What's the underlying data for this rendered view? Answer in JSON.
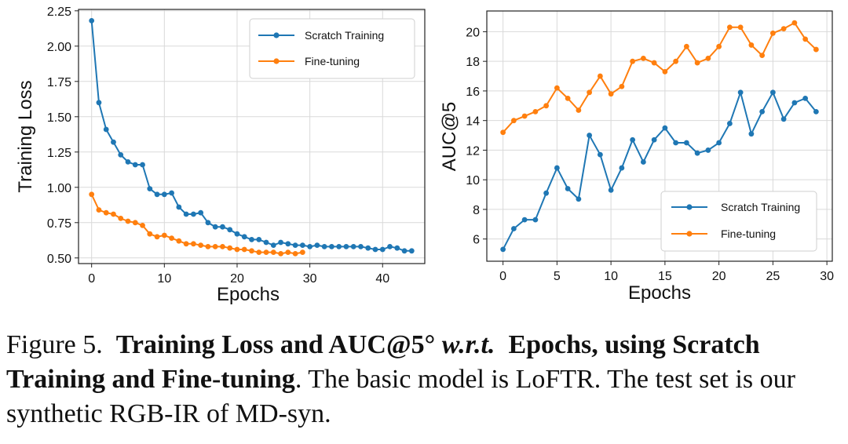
{
  "colors": {
    "scratch": "#1f77b4",
    "finetune": "#ff7f0e",
    "grid": "#d9d9d9",
    "axis": "#222222"
  },
  "chart_data": [
    {
      "type": "line",
      "xlabel": "Epochs",
      "ylabel": "Training Loss",
      "xlim": [
        -1.8,
        45.8
      ],
      "ylim": [
        0.46,
        2.26
      ],
      "xticks": [
        0,
        10,
        20,
        30,
        40
      ],
      "yticks": [
        0.5,
        0.75,
        1.0,
        1.25,
        1.5,
        1.75,
        2.0,
        2.25
      ],
      "ytick_labels": [
        "0.50",
        "0.75",
        "1.00",
        "1.25",
        "1.50",
        "1.75",
        "2.00",
        "2.25"
      ],
      "grid": true,
      "legend_position": "top-right",
      "series": [
        {
          "name": "Scratch Training",
          "color_key": "scratch",
          "x": [
            0,
            1,
            2,
            3,
            4,
            5,
            6,
            7,
            8,
            9,
            10,
            11,
            12,
            13,
            14,
            15,
            16,
            17,
            18,
            19,
            20,
            21,
            22,
            23,
            24,
            25,
            26,
            27,
            28,
            29,
            30,
            31,
            32,
            33,
            34,
            35,
            36,
            37,
            38,
            39,
            40,
            41,
            42,
            43,
            44
          ],
          "values": [
            2.18,
            1.6,
            1.41,
            1.32,
            1.23,
            1.18,
            1.16,
            1.16,
            0.99,
            0.95,
            0.95,
            0.96,
            0.86,
            0.81,
            0.81,
            0.82,
            0.75,
            0.72,
            0.72,
            0.7,
            0.67,
            0.65,
            0.63,
            0.63,
            0.61,
            0.59,
            0.61,
            0.6,
            0.59,
            0.59,
            0.58,
            0.59,
            0.58,
            0.58,
            0.58,
            0.58,
            0.58,
            0.58,
            0.57,
            0.56,
            0.56,
            0.58,
            0.57,
            0.55,
            0.55
          ]
        },
        {
          "name": "Fine-tuning",
          "color_key": "finetune",
          "x": [
            0,
            1,
            2,
            3,
            4,
            5,
            6,
            7,
            8,
            9,
            10,
            11,
            12,
            13,
            14,
            15,
            16,
            17,
            18,
            19,
            20,
            21,
            22,
            23,
            24,
            25,
            26,
            27,
            28,
            29
          ],
          "values": [
            0.95,
            0.84,
            0.82,
            0.81,
            0.78,
            0.76,
            0.75,
            0.73,
            0.67,
            0.65,
            0.66,
            0.64,
            0.62,
            0.6,
            0.6,
            0.59,
            0.58,
            0.58,
            0.58,
            0.57,
            0.56,
            0.56,
            0.55,
            0.54,
            0.54,
            0.54,
            0.53,
            0.54,
            0.53,
            0.54
          ]
        }
      ]
    },
    {
      "type": "line",
      "xlabel": "Epochs",
      "ylabel": "AUC@5",
      "xlim": [
        -1.5,
        30.5
      ],
      "ylim": [
        4.5,
        21.4
      ],
      "xticks": [
        0,
        5,
        10,
        15,
        20,
        25,
        30
      ],
      "yticks": [
        6,
        8,
        10,
        12,
        14,
        16,
        18,
        20
      ],
      "ytick_labels": [
        "6",
        "8",
        "10",
        "12",
        "14",
        "16",
        "18",
        "20"
      ],
      "grid": true,
      "legend_position": "bottom-right",
      "series": [
        {
          "name": "Scratch Training",
          "color_key": "scratch",
          "x": [
            0,
            1,
            2,
            3,
            4,
            5,
            6,
            7,
            8,
            9,
            10,
            11,
            12,
            13,
            14,
            15,
            16,
            17,
            18,
            19,
            20,
            21,
            22,
            23,
            24,
            25,
            26,
            27,
            28,
            29
          ],
          "values": [
            5.3,
            6.7,
            7.3,
            7.3,
            9.1,
            10.8,
            9.4,
            8.7,
            13.0,
            11.7,
            9.3,
            10.8,
            12.7,
            11.2,
            12.7,
            13.5,
            12.5,
            12.5,
            11.8,
            12.0,
            12.5,
            13.8,
            15.9,
            13.1,
            14.6,
            15.9,
            14.1,
            15.2,
            15.5,
            14.6
          ]
        },
        {
          "name": "Fine-tuning",
          "color_key": "finetune",
          "x": [
            0,
            1,
            2,
            3,
            4,
            5,
            6,
            7,
            8,
            9,
            10,
            11,
            12,
            13,
            14,
            15,
            16,
            17,
            18,
            19,
            20,
            21,
            22,
            23,
            24,
            25,
            26,
            27,
            28,
            29
          ],
          "values": [
            13.2,
            14.0,
            14.3,
            14.6,
            15.0,
            16.2,
            15.5,
            14.7,
            15.9,
            17.0,
            15.8,
            16.3,
            18.0,
            18.2,
            17.9,
            17.3,
            18.0,
            19.0,
            17.9,
            18.2,
            19.0,
            20.3,
            20.3,
            19.1,
            18.4,
            19.9,
            20.2,
            20.6,
            19.5,
            18.8
          ]
        }
      ]
    }
  ],
  "caption": {
    "figure_label": "Figure 5.",
    "bold_part1": "Training Loss and AUC@5",
    "degree": "°",
    "wrt": "w.r.t.",
    "bold_part2": "Epochs, using Scratch Training and Fine-tuning",
    "rest": ". The basic model is LoFTR. The test set is our synthetic RGB-IR of MD-syn."
  }
}
